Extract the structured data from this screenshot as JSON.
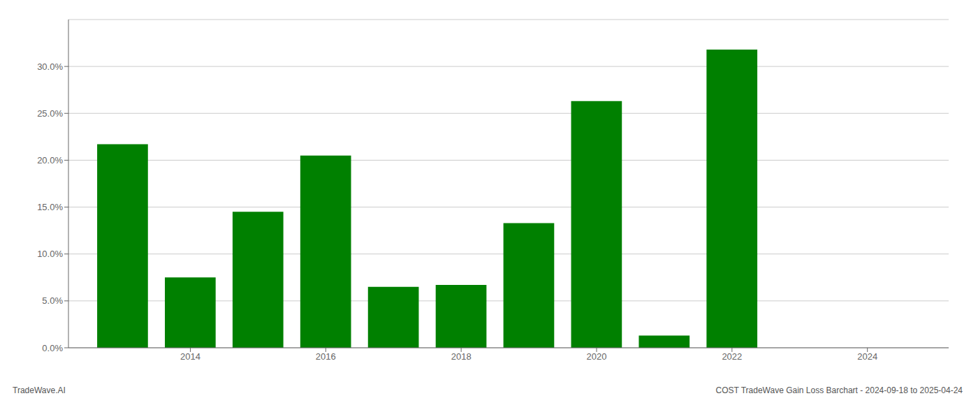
{
  "chart_data": {
    "type": "bar",
    "title": "COST TradeWave Gain Loss Barchart - 2024-09-18 to 2025-04-24",
    "annotations": [
      "TradeWave.AI"
    ],
    "x": [
      2013,
      2014,
      2015,
      2016,
      2017,
      2018,
      2019,
      2020,
      2021,
      2022
    ],
    "values": [
      0.217,
      0.075,
      0.145,
      0.205,
      0.065,
      0.067,
      0.133,
      0.263,
      0.013,
      0.318
    ],
    "color": "#008000",
    "xlim": [
      2012.2,
      2025.2
    ],
    "xticks": [
      2014,
      2016,
      2018,
      2020,
      2022,
      2024
    ],
    "ylim": [
      0,
      0.35
    ],
    "yticks": [
      {
        "value": 0.0,
        "label": "0.0%"
      },
      {
        "value": 0.05,
        "label": "5.0%"
      },
      {
        "value": 0.1,
        "label": "10.0%"
      },
      {
        "value": 0.15,
        "label": "15.0%"
      },
      {
        "value": 0.2,
        "label": "20.0%"
      },
      {
        "value": 0.25,
        "label": "25.0%"
      },
      {
        "value": 0.3,
        "label": "30.0%"
      }
    ],
    "grid": true
  }
}
